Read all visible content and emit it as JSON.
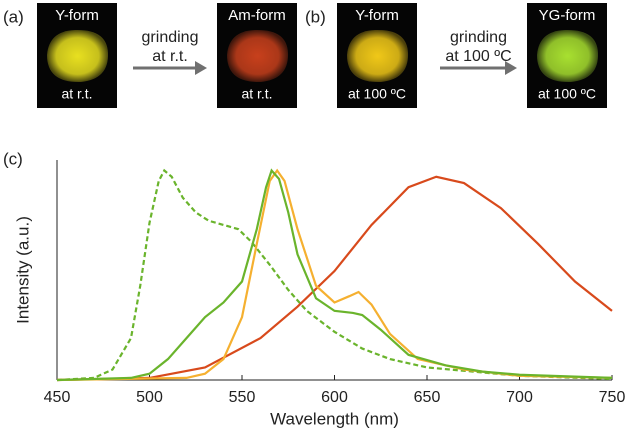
{
  "figure": {
    "panel_labels": [
      "(a)",
      "(b)",
      "(c)"
    ],
    "photos": [
      {
        "title": "Y-form",
        "caption": "at r.t.",
        "color": "#e8e020"
      },
      {
        "title": "Am-form",
        "caption": "at r.t.",
        "color": "#c8401c"
      },
      {
        "title": "Y-form",
        "caption": "at 100 ºC",
        "color": "#f0c818"
      },
      {
        "title": "YG-form",
        "caption": "at 100 ºC",
        "color": "#a8e030"
      }
    ],
    "arrows": [
      {
        "lines": [
          "grinding",
          "at r.t."
        ]
      },
      {
        "lines": [
          "grinding",
          "at 100 ºC"
        ]
      }
    ]
  },
  "chart_data": {
    "type": "line",
    "x_label": "Wavelength (nm)",
    "y_label": "Intensity (a.u.)",
    "xlim": [
      450,
      750
    ],
    "xticks": [
      450,
      500,
      550,
      600,
      650,
      700,
      750
    ],
    "ylim": [
      0,
      1.05
    ],
    "series": [
      {
        "color": "#6ab42c",
        "dashed": true,
        "x": [
          450,
          470,
          480,
          490,
          495,
          500,
          505,
          508,
          512,
          518,
          525,
          532,
          540,
          548,
          555,
          565,
          575,
          585,
          600,
          615,
          630,
          650,
          675,
          700,
          750
        ],
        "values": [
          0,
          0.01,
          0.05,
          0.2,
          0.45,
          0.75,
          0.95,
          1,
          0.97,
          0.87,
          0.8,
          0.76,
          0.74,
          0.72,
          0.66,
          0.55,
          0.43,
          0.33,
          0.23,
          0.15,
          0.1,
          0.06,
          0.04,
          0.02,
          0.005
        ]
      },
      {
        "color": "#d84a1c",
        "dashed": false,
        "x": [
          450,
          500,
          530,
          560,
          580,
          600,
          620,
          640,
          655,
          670,
          690,
          710,
          730,
          750
        ],
        "values": [
          0,
          0.01,
          0.06,
          0.2,
          0.35,
          0.52,
          0.74,
          0.92,
          0.97,
          0.94,
          0.82,
          0.65,
          0.47,
          0.33
        ]
      },
      {
        "color": "#f5b030",
        "dashed": false,
        "x": [
          450,
          520,
          530,
          540,
          550,
          558,
          565,
          569,
          573,
          580,
          590,
          600,
          608,
          613,
          620,
          630,
          645,
          670,
          700,
          750
        ],
        "values": [
          0,
          0.01,
          0.03,
          0.1,
          0.3,
          0.65,
          0.95,
          1,
          0.95,
          0.72,
          0.45,
          0.37,
          0.4,
          0.42,
          0.36,
          0.22,
          0.1,
          0.05,
          0.02,
          0.01
        ]
      },
      {
        "color": "#6ab42c",
        "dashed": false,
        "x": [
          450,
          490,
          500,
          510,
          520,
          530,
          540,
          550,
          558,
          563,
          566,
          570,
          575,
          580,
          590,
          600,
          610,
          615,
          625,
          640,
          660,
          680,
          700,
          750
        ],
        "values": [
          0,
          0.01,
          0.03,
          0.1,
          0.2,
          0.3,
          0.37,
          0.47,
          0.72,
          0.92,
          1,
          0.96,
          0.8,
          0.6,
          0.39,
          0.33,
          0.32,
          0.31,
          0.24,
          0.12,
          0.07,
          0.04,
          0.025,
          0.01
        ]
      }
    ]
  }
}
